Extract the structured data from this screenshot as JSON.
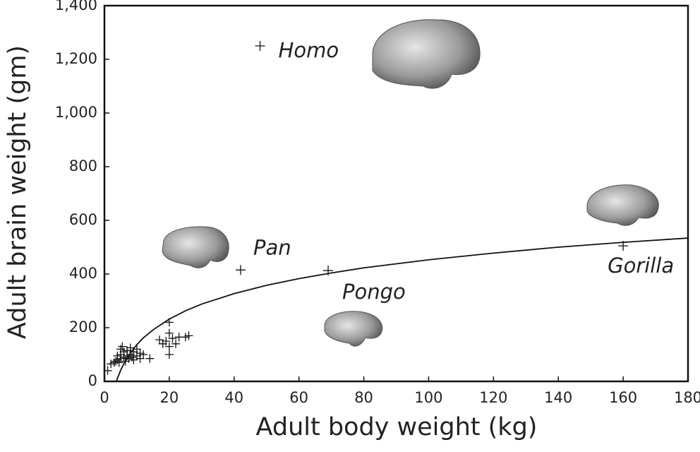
{
  "chart_data": {
    "type": "scatter",
    "xlabel": "Adult body weight (kg)",
    "ylabel": "Adult brain weight (gm)",
    "xlim": [
      0,
      180
    ],
    "ylim": [
      0,
      1400
    ],
    "xticks": [
      0,
      20,
      40,
      60,
      80,
      100,
      120,
      140,
      160,
      180
    ],
    "yticks": [
      0,
      200,
      400,
      600,
      800,
      {
        "value": 1000,
        "label": "1,000"
      },
      {
        "value": 1200,
        "label": "1,200"
      },
      {
        "value": 1400,
        "label": "1,400"
      }
    ],
    "color": "#111111",
    "x": [
      1,
      2,
      3,
      3.5,
      4,
      4,
      4.5,
      5,
      5,
      5,
      5.5,
      6,
      6,
      6.5,
      7,
      7,
      7.5,
      8,
      8,
      8.5,
      9,
      9,
      10,
      10,
      11,
      11,
      12,
      14,
      17,
      18,
      19,
      20,
      20,
      20,
      20,
      21,
      22,
      23,
      25,
      26
    ],
    "y": [
      40,
      65,
      70,
      75,
      80,
      95,
      70,
      85,
      100,
      120,
      130,
      90,
      110,
      75,
      95,
      115,
      85,
      100,
      125,
      90,
      110,
      80,
      95,
      120,
      105,
      85,
      100,
      85,
      155,
      140,
      150,
      220,
      180,
      130,
      100,
      160,
      140,
      165,
      165,
      170
    ],
    "annotations": [
      {
        "text": "Homo",
        "x": 48,
        "y": 1250
      },
      {
        "text": "Pan",
        "x": 42,
        "y": 415
      },
      {
        "text": "Pongo",
        "x": 69,
        "y": 413
      },
      {
        "text": "Gorilla",
        "x": 160,
        "y": 505
      }
    ],
    "curve": {
      "x": [
        3.7,
        4,
        5,
        6,
        8,
        10,
        12,
        15,
        20,
        25,
        30,
        40,
        50,
        60,
        70,
        80,
        100,
        120,
        140,
        160,
        180
      ],
      "values": [
        0,
        11,
        41,
        66,
        106,
        137,
        162,
        192,
        232,
        263,
        288,
        327,
        358,
        383,
        404,
        423,
        453,
        478,
        500,
        518,
        534
      ]
    }
  }
}
